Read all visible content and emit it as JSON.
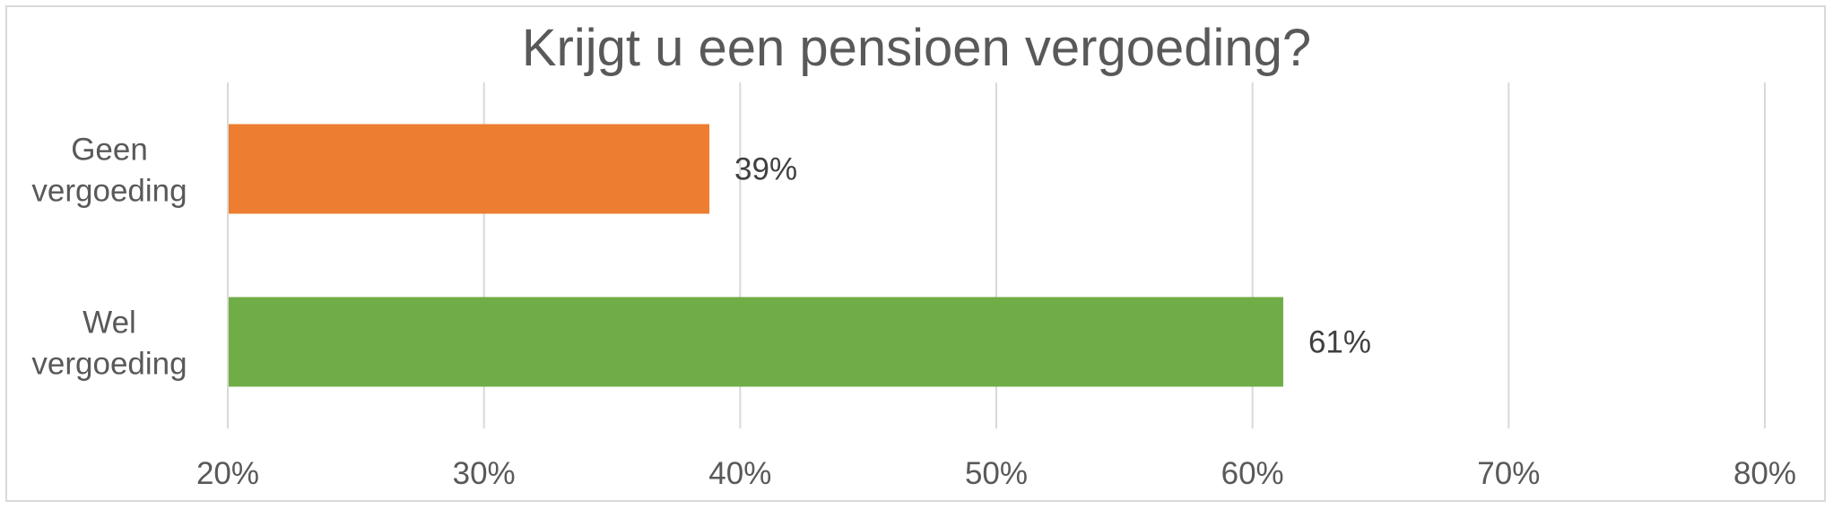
{
  "chart_data": {
    "type": "bar",
    "orientation": "horizontal",
    "title": "Krijgt u een pensioen vergoeding?",
    "categories": [
      "Geen vergoeding",
      "Wel vergoeding"
    ],
    "category_lines": [
      [
        "Geen",
        "vergoeding"
      ],
      [
        "Wel",
        "vergoeding"
      ]
    ],
    "values": [
      38.8,
      61.2
    ],
    "data_labels": [
      "39%",
      "61%"
    ],
    "colors": [
      "#ED7D31",
      "#70AD47"
    ],
    "xlim": [
      20,
      80
    ],
    "xticks": [
      20,
      30,
      40,
      50,
      60,
      70,
      80
    ],
    "xtick_labels": [
      "20%",
      "30%",
      "40%",
      "50%",
      "60%",
      "70%",
      "80%"
    ],
    "grid": true,
    "gridline_color": "#d9d9d9",
    "legend": "none"
  }
}
